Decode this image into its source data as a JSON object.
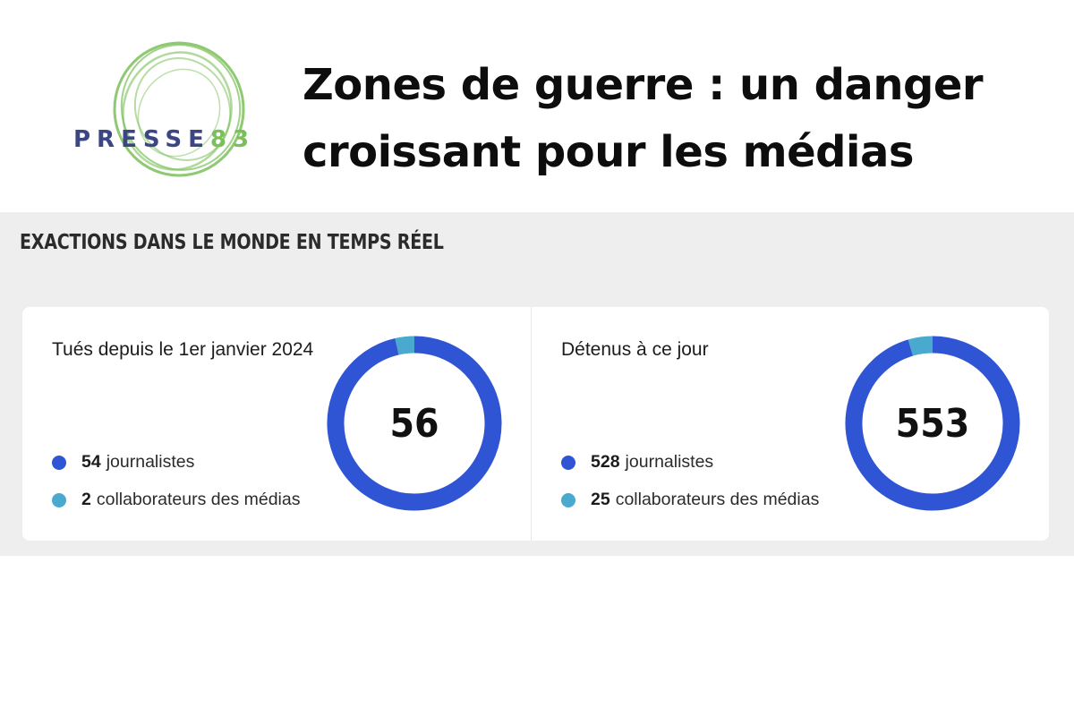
{
  "logo": {
    "word": "PRESSE",
    "number": "83"
  },
  "headline": {
    "line1": "Zones de guerre : un danger",
    "line2": "croissant pour les médias"
  },
  "panel": {
    "title": "EXACTIONS DANS LE MONDE EN TEMPS RÉEL"
  },
  "colors": {
    "journalists": "#2f55d4",
    "collaborators": "#4aa9cf",
    "background": "#efeeee",
    "logo_text": "#3c4682",
    "logo_accent": "#7bbf5a"
  },
  "chart_data": [
    {
      "type": "pie",
      "variant": "donut",
      "title": "Tués depuis le 1er janvier 2024",
      "total_label": "56",
      "total": 56,
      "categories": [
        "journalistes",
        "collaborateurs des médias"
      ],
      "values": [
        54,
        2
      ],
      "colors": [
        "#2f55d4",
        "#4aa9cf"
      ]
    },
    {
      "type": "pie",
      "variant": "donut",
      "title": "Détenus à ce jour",
      "total_label": "553",
      "total": 553,
      "categories": [
        "journalistes",
        "collaborateurs des médias"
      ],
      "values": [
        528,
        25
      ],
      "colors": [
        "#2f55d4",
        "#4aa9cf"
      ]
    }
  ]
}
